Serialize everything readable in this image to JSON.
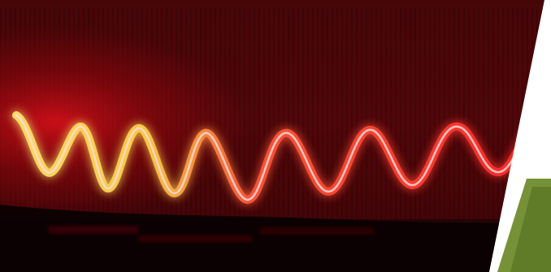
{
  "image": {
    "subject": "red-laser-sine-wave-on-dark-surface",
    "colors": {
      "background": "#ffffff",
      "backdrop_dark": "#1a0304",
      "glow_red": "#e0101a",
      "wave_red": "#ff3b3b",
      "wave_yellow": "#ffe66b",
      "floor_dark": "#120203",
      "foliage_green": "#6f8b2c"
    }
  }
}
